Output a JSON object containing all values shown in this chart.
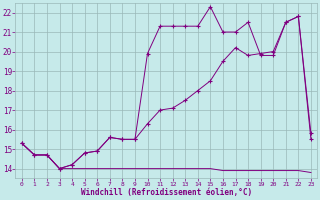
{
  "background_color": "#c6eaea",
  "line_color": "#800080",
  "grid_color": "#9ab8b8",
  "title": "Windchill (Refroidissement éolien,°C)",
  "xlim": [
    -0.5,
    23.5
  ],
  "ylim": [
    13.5,
    22.5
  ],
  "yticks": [
    14,
    15,
    16,
    17,
    18,
    19,
    20,
    21,
    22
  ],
  "xticks": [
    0,
    1,
    2,
    3,
    4,
    5,
    6,
    7,
    8,
    9,
    10,
    11,
    12,
    13,
    14,
    15,
    16,
    17,
    18,
    19,
    20,
    21,
    22,
    23
  ],
  "series": [
    {
      "x": [
        0,
        1,
        2,
        3,
        4,
        5,
        6,
        7,
        8,
        9,
        10,
        11,
        12,
        13,
        14,
        15,
        16,
        17,
        18,
        19,
        20,
        21,
        22,
        23
      ],
      "y": [
        15.3,
        14.7,
        14.7,
        14.0,
        14.0,
        14.0,
        14.0,
        14.0,
        14.0,
        14.0,
        14.0,
        14.0,
        14.0,
        14.0,
        14.0,
        14.0,
        13.9,
        13.9,
        13.9,
        13.9,
        13.9,
        13.9,
        13.9,
        13.8
      ],
      "marker": false
    },
    {
      "x": [
        0,
        1,
        2,
        3,
        4,
        5,
        6,
        7,
        8,
        9,
        10,
        11,
        12,
        13,
        14,
        15,
        16,
        17,
        18,
        19,
        20,
        21,
        22,
        23
      ],
      "y": [
        15.3,
        14.7,
        14.7,
        14.0,
        14.2,
        14.8,
        14.9,
        15.6,
        15.5,
        15.5,
        16.3,
        17.0,
        17.1,
        17.5,
        18.0,
        18.5,
        19.5,
        20.2,
        19.8,
        19.9,
        20.0,
        21.5,
        21.8,
        15.8
      ],
      "marker": true
    },
    {
      "x": [
        0,
        1,
        2,
        3,
        4,
        5,
        6,
        7,
        8,
        9,
        10,
        11,
        12,
        13,
        14,
        15,
        16,
        17,
        18,
        19,
        20,
        21,
        22,
        23
      ],
      "y": [
        15.3,
        14.7,
        14.7,
        14.0,
        14.2,
        14.8,
        14.9,
        15.6,
        15.5,
        15.5,
        19.9,
        21.3,
        21.3,
        21.3,
        21.3,
        22.3,
        21.0,
        21.0,
        21.5,
        19.8,
        19.8,
        21.5,
        21.8,
        15.5
      ],
      "marker": true
    }
  ]
}
